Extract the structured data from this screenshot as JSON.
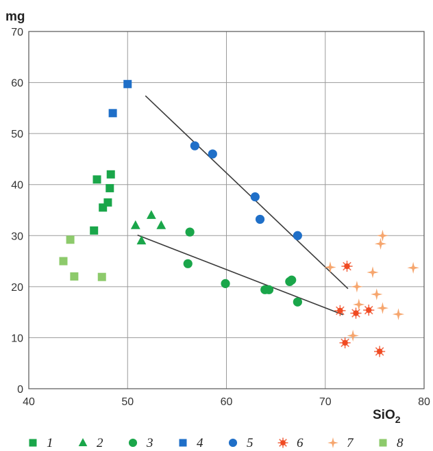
{
  "chart_data": {
    "type": "scatter",
    "ylabel": "mg",
    "xlabel_main": "SiO",
    "xlabel_sub": "2",
    "xlim": [
      40,
      80
    ],
    "ylim": [
      0,
      70
    ],
    "xticks": [
      40,
      50,
      60,
      70,
      80
    ],
    "yticks": [
      0,
      10,
      20,
      30,
      40,
      50,
      60,
      70
    ],
    "grid": true,
    "legend_position": "bottom",
    "series": [
      {
        "name": "1",
        "marker": "square",
        "color": "#1aa64a",
        "points": [
          [
            46.6,
            31
          ],
          [
            46.9,
            41
          ],
          [
            47.5,
            35.5
          ],
          [
            48,
            36.5
          ],
          [
            48.2,
            39.3
          ],
          [
            48.3,
            42
          ]
        ]
      },
      {
        "name": "2",
        "marker": "triangle",
        "color": "#1aa64a",
        "points": [
          [
            50.8,
            32
          ],
          [
            51.4,
            29
          ],
          [
            52.4,
            34
          ],
          [
            53.4,
            32
          ]
        ]
      },
      {
        "name": "3",
        "marker": "circle",
        "color": "#1aa64a",
        "points": [
          [
            56.1,
            24.5
          ],
          [
            56.3,
            30.7
          ],
          [
            59.9,
            20.6
          ],
          [
            63.9,
            19.4
          ],
          [
            64.3,
            19.4
          ],
          [
            66.4,
            21
          ],
          [
            66.6,
            21.3
          ],
          [
            67.2,
            17
          ]
        ]
      },
      {
        "name": "4",
        "marker": "square",
        "color": "#1f6fc8",
        "points": [
          [
            48.5,
            54
          ],
          [
            50,
            59.7
          ]
        ]
      },
      {
        "name": "5",
        "marker": "circle",
        "color": "#1f6fc8",
        "points": [
          [
            56.8,
            47.6
          ],
          [
            58.6,
            46
          ],
          [
            62.9,
            37.6
          ],
          [
            63.4,
            33.2
          ],
          [
            67.2,
            30
          ]
        ]
      },
      {
        "name": "6",
        "marker": "sunburst",
        "color": "#f04a22",
        "points": [
          [
            71.5,
            15.3
          ],
          [
            72,
            9
          ],
          [
            72.2,
            24
          ],
          [
            73.1,
            14.8
          ],
          [
            74.4,
            15.4
          ],
          [
            75.5,
            7.3
          ]
        ]
      },
      {
        "name": "7",
        "marker": "sparkle",
        "color": "#f6a66e",
        "points": [
          [
            70.5,
            23.8
          ],
          [
            72.8,
            10.4
          ],
          [
            73.2,
            20
          ],
          [
            73.4,
            16.5
          ],
          [
            74.8,
            22.8
          ],
          [
            75.2,
            18.5
          ],
          [
            75.6,
            28.4
          ],
          [
            75.8,
            30
          ],
          [
            75.8,
            15.8
          ],
          [
            77.4,
            14.6
          ],
          [
            78.9,
            23.7
          ]
        ]
      },
      {
        "name": "8",
        "marker": "square",
        "color": "#8dca6b",
        "points": [
          [
            43.5,
            25
          ],
          [
            44.2,
            29.2
          ],
          [
            44.6,
            22
          ],
          [
            47.4,
            21.9
          ]
        ]
      }
    ],
    "trend_lines": [
      [
        [
          51.8,
          57.4
        ],
        [
          72.3,
          19.6
        ]
      ],
      [
        [
          51,
          30.1
        ],
        [
          71.8,
          14.5
        ]
      ]
    ]
  }
}
